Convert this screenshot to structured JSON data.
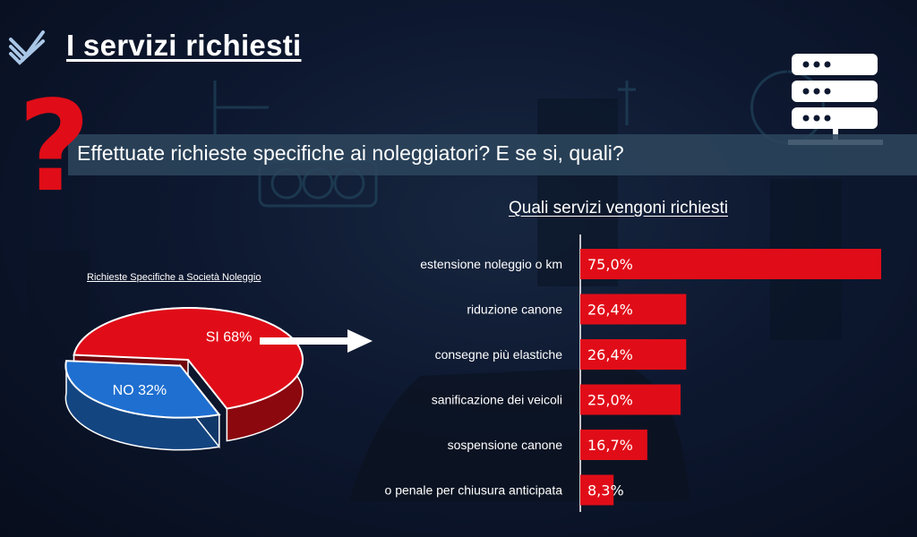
{
  "header": {
    "title": "I servizi richiesti",
    "logo_icon": "stacked-chevrons-logo",
    "server_icon": "server-rack-icon"
  },
  "question": {
    "mark_icon": "question-mark-icon",
    "text": "Effettuate richieste specifiche ai noleggiatori? E se si, quali?"
  },
  "colors": {
    "accent_red": "#e00d18",
    "pie_blue": "#1f6fd0",
    "band": "#2c465c"
  },
  "chart_data": [
    {
      "type": "pie",
      "title": "Richieste Specifiche a Società Noleggio",
      "slices": [
        {
          "label": "SI",
          "value": 68,
          "display": "SI 68%",
          "color": "#e00d18"
        },
        {
          "label": "NO",
          "value": 32,
          "display": "NO 32%",
          "color": "#1f6fd0"
        }
      ]
    },
    {
      "type": "bar",
      "orientation": "horizontal",
      "title": "Quali servizi vengoni richiesti",
      "categories": [
        "estensione noleggio o km",
        "riduzione canone",
        "consegne più elastiche",
        "sanificazione dei veicoli",
        "sospensione canone",
        "no penale per chiusura anticipata"
      ],
      "values": [
        75.0,
        26.4,
        26.4,
        25.0,
        16.7,
        8.3
      ],
      "labels": [
        "75,0%",
        "26,4%",
        "26,4%",
        "25,0%",
        "16,7%",
        "8,3%"
      ],
      "color": "#e00d18",
      "xlim": [
        0,
        75
      ]
    }
  ]
}
